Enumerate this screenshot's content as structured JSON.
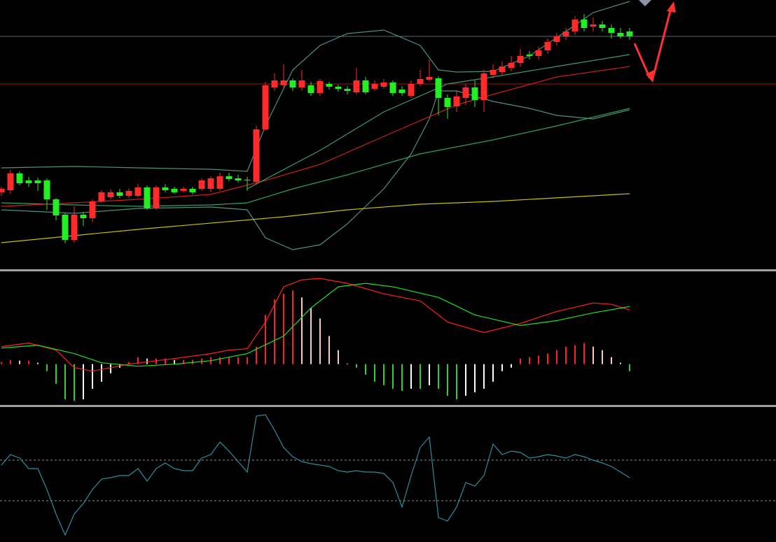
{
  "chart_data": [
    {
      "type": "candlestick",
      "ylim": [
        0,
        385
      ],
      "xlim": [
        0,
        69
      ],
      "up_color": "#ff2a2a",
      "down_color": "#22ee22",
      "open": [
        110,
        113,
        137,
        127,
        127,
        127,
        100,
        78,
        42,
        78,
        73,
        97,
        103,
        110,
        105,
        105,
        117,
        87,
        117,
        115,
        112,
        115,
        115,
        115,
        115,
        133,
        130,
        128,
        125,
        200,
        260,
        263,
        270,
        260,
        263,
        252,
        265,
        261,
        258,
        253,
        270,
        258,
        261,
        267,
        257,
        248,
        265,
        271,
        273,
        245,
        233,
        245,
        260,
        242,
        278,
        282,
        288,
        295,
        307,
        305,
        313,
        325,
        333,
        340,
        357,
        347,
        350,
        345,
        338,
        340
      ],
      "close": [
        115,
        137,
        123,
        123,
        123,
        100,
        77,
        42,
        78,
        73,
        97,
        110,
        110,
        105,
        112,
        117,
        87,
        117,
        113,
        110,
        115,
        110,
        127,
        130,
        133,
        129,
        127,
        127,
        200,
        263,
        270,
        270,
        260,
        270,
        252,
        269,
        261,
        258,
        255,
        270,
        253,
        265,
        267,
        252,
        252,
        265,
        272,
        275,
        245,
        232,
        247,
        260,
        242,
        280,
        285,
        290,
        295,
        305,
        305,
        313,
        325,
        333,
        340,
        357,
        345,
        350,
        345,
        338,
        333,
        333
      ],
      "high": [
        118,
        142,
        140,
        132,
        131,
        130,
        102,
        80,
        90,
        82,
        100,
        113,
        114,
        115,
        116,
        122,
        120,
        120,
        122,
        118,
        118,
        118,
        130,
        133,
        138,
        138,
        135,
        132,
        205,
        268,
        280,
        293,
        273,
        285,
        268,
        272,
        268,
        264,
        262,
        288,
        275,
        270,
        272,
        270,
        262,
        270,
        285,
        300,
        276,
        250,
        255,
        265,
        270,
        285,
        293,
        297,
        305,
        315,
        312,
        318,
        330,
        338,
        345,
        362,
        365,
        360,
        355,
        350,
        345,
        345
      ],
      "low": [
        105,
        108,
        120,
        118,
        112,
        85,
        70,
        37,
        38,
        62,
        68,
        95,
        100,
        102,
        102,
        103,
        85,
        85,
        110,
        108,
        110,
        107,
        112,
        110,
        112,
        126,
        124,
        112,
        122,
        198,
        255,
        258,
        255,
        255,
        248,
        248,
        257,
        254,
        250,
        250,
        250,
        255,
        258,
        248,
        248,
        245,
        262,
        268,
        220,
        215,
        225,
        235,
        232,
        225,
        273,
        278,
        283,
        290,
        300,
        300,
        308,
        320,
        328,
        335,
        340,
        340,
        340,
        330,
        330,
        328
      ],
      "series": [
        {
          "color": "#4f8f7f",
          "x": [
            0,
            8,
            15,
            23,
            27,
            29,
            32,
            35,
            38,
            42,
            46,
            48,
            50,
            54,
            58,
            62,
            65,
            69
          ],
          "values": [
            145,
            147,
            145,
            143,
            140,
            205,
            285,
            320,
            337,
            342,
            320,
            285,
            282,
            283,
            305,
            340,
            367,
            383
          ]
        },
        {
          "color": "#4f8f7f",
          "x": [
            0,
            8,
            15,
            23,
            27,
            29,
            32,
            35,
            38,
            42,
            45,
            47,
            48,
            50,
            54,
            58,
            61,
            65,
            69
          ],
          "values": [
            85,
            80,
            87,
            89,
            85,
            45,
            28,
            35,
            65,
            115,
            165,
            215,
            255,
            255,
            240,
            230,
            220,
            215,
            228
          ]
        },
        {
          "color": "#2fa060",
          "x": [
            0,
            8,
            15,
            23,
            27,
            32,
            38,
            46,
            54,
            61,
            69
          ],
          "values": [
            95,
            92,
            90,
            92,
            95,
            115,
            135,
            165,
            185,
            205,
            230
          ]
        },
        {
          "color": "#c8201c",
          "x": [
            0,
            8,
            15,
            23,
            29,
            35,
            42,
            50,
            54,
            61,
            69
          ],
          "values": [
            90,
            95,
            100,
            107,
            127,
            150,
            190,
            235,
            250,
            275,
            290
          ]
        },
        {
          "color": "#c8c000",
          "x": [
            0,
            15,
            31,
            38,
            46,
            54,
            69
          ],
          "values": [
            38,
            57,
            75,
            85,
            93,
            97,
            108
          ]
        },
        {
          "color": "#3a9a70",
          "x": [
            27,
            35,
            42,
            49,
            54,
            61,
            69
          ],
          "values": [
            115,
            170,
            225,
            265,
            275,
            290,
            307
          ]
        }
      ],
      "hlines": [
        {
          "value": 333,
          "color": "#5a6a7a"
        },
        {
          "value": 265,
          "color": "#a01818"
        }
      ]
    },
    {
      "type": "macd",
      "ylim": [
        -58,
        132
      ],
      "xlim": [
        0,
        69
      ],
      "values": [
        3,
        6,
        5,
        5,
        2,
        -10,
        -28,
        -50,
        -52,
        -50,
        -35,
        -25,
        -13,
        -5,
        3,
        10,
        8,
        8,
        8,
        6,
        6,
        6,
        8,
        10,
        10,
        10,
        10,
        10,
        25,
        70,
        92,
        100,
        105,
        95,
        80,
        65,
        40,
        20,
        0,
        -5,
        -15,
        -25,
        -30,
        -35,
        -38,
        -35,
        -35,
        -30,
        -35,
        -45,
        -50,
        -45,
        -40,
        -35,
        -25,
        -10,
        -5,
        8,
        10,
        12,
        15,
        20,
        25,
        27,
        30,
        25,
        20,
        10,
        2,
        -10
      ],
      "series": [
        {
          "color": "#ff2020",
          "x": [
            0,
            3,
            6,
            8,
            10,
            14,
            19,
            23,
            25,
            27,
            29,
            31,
            33,
            35,
            38,
            42,
            46,
            49,
            53,
            57,
            61,
            65,
            67,
            69
          ],
          "values": [
            25,
            30,
            20,
            -5,
            -10,
            0,
            8,
            15,
            20,
            22,
            60,
            110,
            120,
            122,
            115,
            100,
            90,
            60,
            45,
            58,
            75,
            87,
            85,
            77
          ]
        },
        {
          "color": "#20e020",
          "x": [
            0,
            4,
            8,
            11,
            15,
            19,
            23,
            27,
            31,
            34,
            37,
            40,
            43,
            48,
            52,
            57,
            61,
            65,
            69
          ],
          "values": [
            23,
            27,
            15,
            2,
            -3,
            0,
            5,
            15,
            40,
            80,
            110,
            115,
            110,
            95,
            70,
            55,
            62,
            73,
            82
          ]
        }
      ]
    },
    {
      "type": "line",
      "ylim": [
        0,
        193
      ],
      "xlim": [
        0,
        69
      ],
      "levels": [
        117,
        59
      ],
      "level_color": "#909090",
      "series": [
        {
          "color": "#2a8fa0",
          "values": [
            110,
            125,
            120,
            105,
            105,
            75,
            40,
            10,
            40,
            55,
            75,
            90,
            92,
            95,
            95,
            105,
            87,
            105,
            113,
            105,
            102,
            102,
            120,
            125,
            143,
            130,
            115,
            100,
            180,
            182,
            160,
            135,
            122,
            115,
            112,
            110,
            108,
            102,
            100,
            102,
            100,
            100,
            98,
            85,
            50,
            95,
            135,
            150,
            35,
            30,
            50,
            85,
            80,
            95,
            140,
            125,
            130,
            128,
            120,
            122,
            125,
            123,
            120,
            125,
            122,
            117,
            113,
            108,
            100,
            92
          ]
        }
      ]
    }
  ]
}
